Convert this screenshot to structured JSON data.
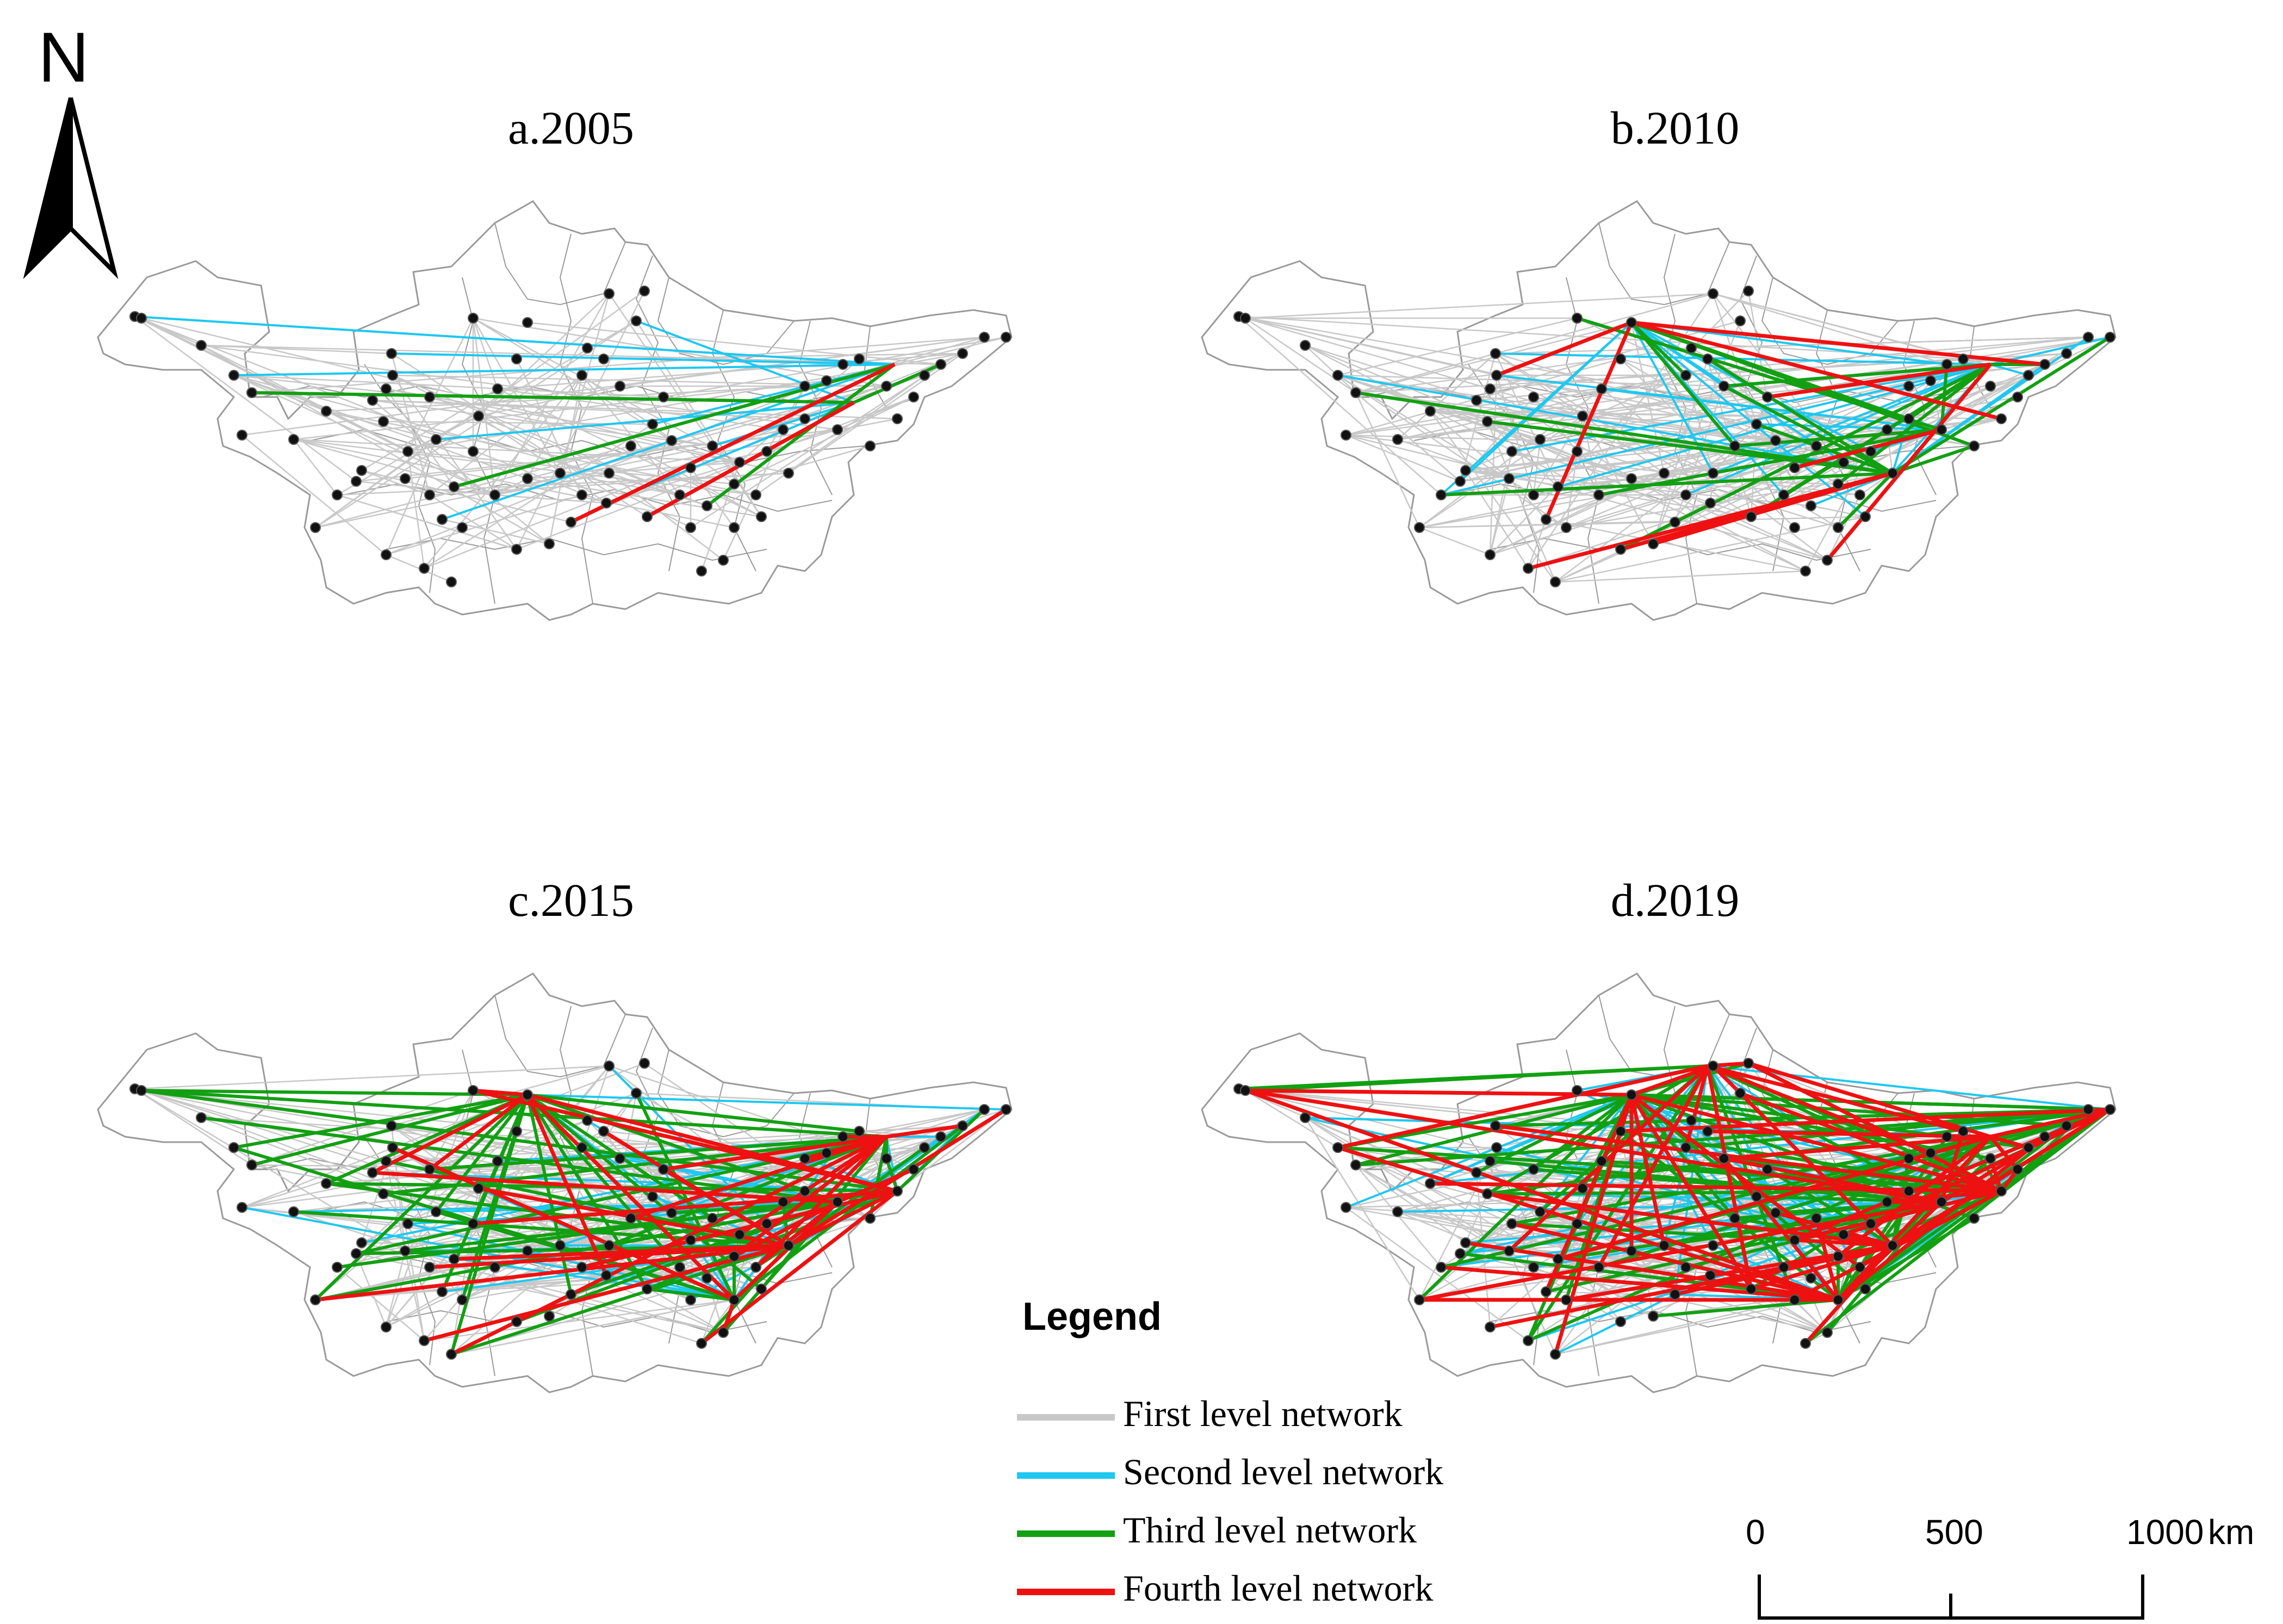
{
  "north_arrow": {
    "letter": "N",
    "icon": "north-arrow-icon"
  },
  "panels": [
    {
      "id": "a",
      "title": "a.2005",
      "intensity": [
        0.55,
        0.06,
        0.02,
        0.01
      ]
    },
    {
      "id": "b",
      "title": "b.2010",
      "intensity": [
        0.8,
        0.2,
        0.14,
        0.05
      ]
    },
    {
      "id": "c",
      "title": "c.2015",
      "intensity": [
        0.85,
        0.35,
        0.35,
        0.18
      ]
    },
    {
      "id": "d",
      "title": "d.2019",
      "intensity": [
        0.9,
        0.5,
        0.55,
        0.35
      ]
    }
  ],
  "legend": {
    "title": "Legend",
    "items": [
      {
        "label": "First level network",
        "color": "#c8c8c8"
      },
      {
        "label": "Second level network",
        "color": "#1ec8f0"
      },
      {
        "label": "Third level network",
        "color": "#12a012"
      },
      {
        "label": "Fourth level network",
        "color": "#ee1111"
      }
    ]
  },
  "scale_bar": {
    "ticks": [
      "0",
      "500",
      "1000"
    ],
    "unit": "km"
  },
  "colors": {
    "boundary": "#9a9a9a",
    "node": "#111111"
  }
}
